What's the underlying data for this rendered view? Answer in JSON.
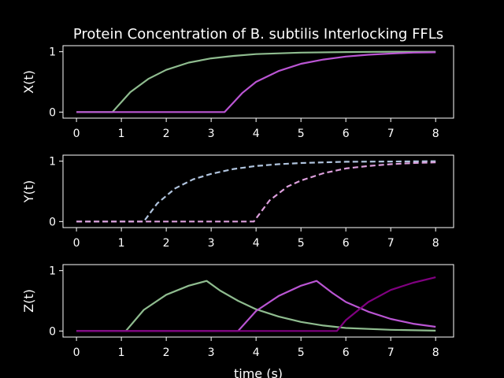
{
  "chart_data": {
    "type": "line",
    "title": "Protein Concentration of B. subtilis Interlocking FFLs",
    "xlabel": "time (s)",
    "xlim": [
      -0.3,
      8.4
    ],
    "xticks": [
      0,
      1,
      2,
      3,
      4,
      5,
      6,
      7,
      8
    ],
    "panels": [
      {
        "ylabel": "X(t)",
        "ylim": [
          -0.1,
          1.1
        ],
        "yticks": [
          0,
          1
        ],
        "series": [
          {
            "color": "#8fbc8f",
            "dash": "solid",
            "x": [
              0,
              0.8,
              1.2,
              1.6,
              2.0,
              2.5,
              3.0,
              3.5,
              4.0,
              5.0,
              6.0,
              7.0,
              8.0
            ],
            "y": [
              0,
              0,
              0.33,
              0.55,
              0.7,
              0.82,
              0.89,
              0.93,
              0.96,
              0.985,
              0.995,
              0.999,
              1.0
            ]
          },
          {
            "color": "#ba55d3",
            "dash": "solid",
            "x": [
              0,
              3.3,
              3.7,
              4.0,
              4.5,
              5.0,
              5.5,
              6.0,
              6.5,
              7.0,
              7.5,
              8.0
            ],
            "y": [
              0,
              0,
              0.32,
              0.5,
              0.68,
              0.8,
              0.87,
              0.92,
              0.95,
              0.97,
              0.985,
              0.99
            ]
          }
        ]
      },
      {
        "ylabel": "Y(t)",
        "ylim": [
          -0.1,
          1.1
        ],
        "yticks": [
          0,
          1
        ],
        "series": [
          {
            "color": "#b0c4de",
            "dash": "dashed",
            "x": [
              0,
              1.5,
              1.8,
              2.2,
              2.6,
              3.0,
              3.5,
              4.0,
              4.5,
              5.0,
              6.0,
              7.0,
              8.0
            ],
            "y": [
              0,
              0,
              0.3,
              0.55,
              0.7,
              0.79,
              0.87,
              0.92,
              0.95,
              0.97,
              0.99,
              0.995,
              1.0
            ]
          },
          {
            "color": "#dda0dd",
            "dash": "dashed",
            "x": [
              0,
              3.95,
              4.3,
              4.7,
              5.0,
              5.5,
              6.0,
              6.5,
              7.0,
              7.5,
              8.0
            ],
            "y": [
              0,
              0,
              0.35,
              0.58,
              0.68,
              0.8,
              0.88,
              0.92,
              0.95,
              0.97,
              0.98
            ]
          }
        ]
      },
      {
        "ylabel": "Z(t)",
        "ylim": [
          -0.1,
          1.1
        ],
        "yticks": [
          0,
          1
        ],
        "series": [
          {
            "color": "#8fbc8f",
            "dash": "solid",
            "x": [
              0,
              1.1,
              1.5,
              2.0,
              2.5,
              2.9,
              3.2,
              3.6,
              4.0,
              4.5,
              5.0,
              5.5,
              6.0,
              7.0,
              8.0
            ],
            "y": [
              0,
              0,
              0.35,
              0.6,
              0.75,
              0.83,
              0.67,
              0.5,
              0.36,
              0.24,
              0.15,
              0.09,
              0.05,
              0.02,
              0.005
            ]
          },
          {
            "color": "#ba55d3",
            "dash": "solid",
            "x": [
              0,
              3.6,
              4.0,
              4.5,
              5.0,
              5.35,
              5.7,
              6.0,
              6.5,
              7.0,
              7.5,
              8.0
            ],
            "y": [
              0,
              0,
              0.33,
              0.58,
              0.75,
              0.83,
              0.63,
              0.48,
              0.32,
              0.2,
              0.12,
              0.07
            ]
          },
          {
            "color": "#800080",
            "dash": "solid",
            "x": [
              0,
              5.8,
              6.0,
              6.5,
              7.0,
              7.5,
              8.0
            ],
            "y": [
              0,
              0,
              0.18,
              0.48,
              0.68,
              0.8,
              0.89
            ]
          }
        ]
      }
    ]
  }
}
